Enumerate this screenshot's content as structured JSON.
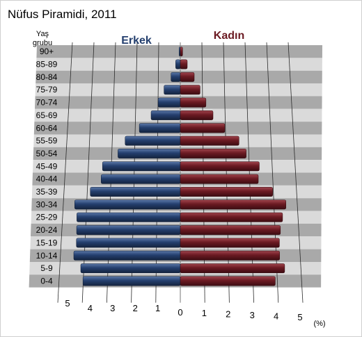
{
  "chart_data": {
    "type": "bar",
    "title": "Nüfus Piramidi, 2011",
    "ylabel": "Yaş grubu",
    "ylabel_lines": [
      "Yaş",
      "grubu"
    ],
    "xlabel": "(%)",
    "categories": [
      "90+",
      "85-89",
      "80-84",
      "75-79",
      "70-74",
      "65-69",
      "60-64",
      "55-59",
      "50-54",
      "45-49",
      "40-44",
      "35-39",
      "30-34",
      "25-29",
      "20-24",
      "15-19",
      "10-14",
      "5-9",
      "0-4"
    ],
    "series": [
      {
        "name": "Erkek",
        "color": "#243f6e",
        "values": [
          0.05,
          0.2,
          0.4,
          0.7,
          0.95,
          1.25,
          1.75,
          2.35,
          2.65,
          3.3,
          3.35,
          3.8,
          4.45,
          4.35,
          4.35,
          4.35,
          4.45,
          4.15,
          4.05
        ]
      },
      {
        "name": "Kadın",
        "color": "#6b1a22",
        "values": [
          0.1,
          0.3,
          0.6,
          0.85,
          1.1,
          1.4,
          1.9,
          2.5,
          2.8,
          3.35,
          3.3,
          3.9,
          4.45,
          4.3,
          4.2,
          4.15,
          4.15,
          4.35,
          3.95
        ]
      }
    ],
    "ticks_left": [
      "5",
      "4",
      "3",
      "2",
      "1"
    ],
    "tick_zero": "0",
    "ticks_right": [
      "1",
      "2",
      "3",
      "4",
      "5"
    ],
    "xlim": [
      0,
      5
    ],
    "grid": true,
    "band_colors": [
      "#a9a9a9",
      "#dadada"
    ]
  }
}
